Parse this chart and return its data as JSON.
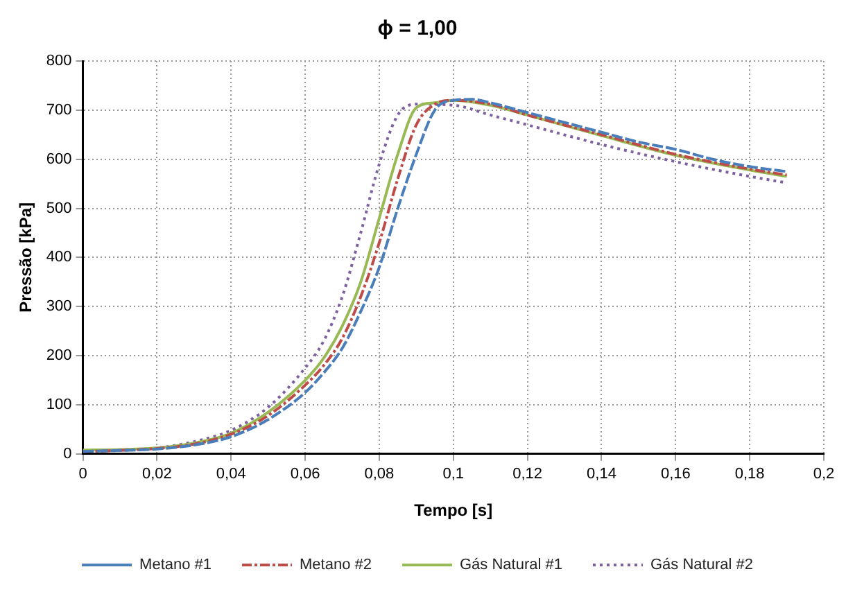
{
  "chart_data": {
    "type": "line",
    "title": "ϕ = 1,00",
    "xlabel": "Tempo [s]",
    "ylabel": "Pressão [kPa]",
    "xlim": [
      0,
      0.2
    ],
    "xticks": [
      0,
      {
        "value": 0.02,
        "label": "0,02"
      },
      {
        "value": 0.04,
        "label": "0,04"
      },
      {
        "value": 0.06,
        "label": "0,06"
      },
      {
        "value": 0.08,
        "label": "0,08"
      },
      {
        "value": 0.1,
        "label": "0,1"
      },
      {
        "value": 0.12,
        "label": "0,12"
      },
      {
        "value": 0.14,
        "label": "0,14"
      },
      {
        "value": 0.16,
        "label": "0,16"
      },
      {
        "value": 0.18,
        "label": "0,18"
      },
      {
        "value": 0.2,
        "label": "0,2"
      }
    ],
    "ylim": [
      0,
      800
    ],
    "yticks": [
      0,
      100,
      200,
      300,
      400,
      500,
      600,
      700,
      800
    ],
    "grid": true,
    "legend": "bottom",
    "marker": "none",
    "series": [
      {
        "name": "Metano #1",
        "color": "#4a7ebb",
        "line_style": "dashed",
        "x": [
          0,
          0.01,
          0.02,
          0.03,
          0.04,
          0.05,
          0.06,
          0.065,
          0.07,
          0.075,
          0.08,
          0.085,
          0.09,
          0.095,
          0.1,
          0.105,
          0.11,
          0.12,
          0.13,
          0.14,
          0.15,
          0.16,
          0.17,
          0.18,
          0.19
        ],
        "values": [
          5,
          7,
          10,
          18,
          35,
          70,
          125,
          165,
          215,
          290,
          380,
          500,
          610,
          700,
          720,
          722,
          715,
          695,
          675,
          655,
          635,
          620,
          600,
          585,
          575
        ]
      },
      {
        "name": "Metano #2",
        "color": "#be4b48",
        "line_style": "dashdot",
        "x": [
          0,
          0.01,
          0.02,
          0.03,
          0.04,
          0.05,
          0.06,
          0.065,
          0.07,
          0.075,
          0.08,
          0.085,
          0.09,
          0.095,
          0.1,
          0.11,
          0.12,
          0.14,
          0.16,
          0.18,
          0.19
        ],
        "values": [
          5,
          7,
          11,
          20,
          40,
          78,
          140,
          180,
          235,
          320,
          430,
          560,
          670,
          712,
          720,
          712,
          690,
          650,
          610,
          580,
          568
        ]
      },
      {
        "name": "Gás Natural #1",
        "color": "#98b954",
        "line_style": "solid",
        "x": [
          0,
          0.01,
          0.02,
          0.03,
          0.04,
          0.05,
          0.06,
          0.065,
          0.07,
          0.075,
          0.08,
          0.085,
          0.09,
          0.095,
          0.1,
          0.11,
          0.12,
          0.14,
          0.16,
          0.18,
          0.19
        ],
        "values": [
          8,
          9,
          12,
          22,
          42,
          85,
          150,
          195,
          260,
          350,
          480,
          610,
          705,
          715,
          720,
          710,
          690,
          648,
          608,
          578,
          565
        ]
      },
      {
        "name": "Gás Natural #2",
        "color": "#7d60a0",
        "line_style": "dotted",
        "x": [
          0,
          0.01,
          0.02,
          0.03,
          0.04,
          0.05,
          0.06,
          0.065,
          0.07,
          0.075,
          0.08,
          0.085,
          0.09,
          0.1,
          0.11,
          0.12,
          0.14,
          0.16,
          0.18,
          0.19
        ],
        "values": [
          6,
          8,
          12,
          25,
          48,
          95,
          175,
          230,
          320,
          450,
          590,
          690,
          712,
          710,
          690,
          670,
          630,
          595,
          565,
          552
        ]
      }
    ]
  }
}
